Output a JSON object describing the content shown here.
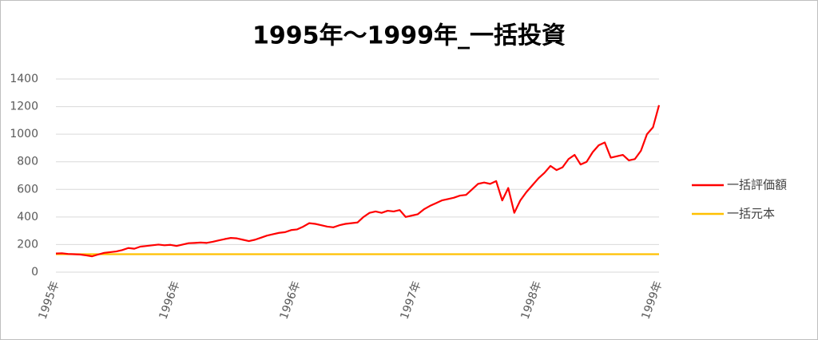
{
  "chart_data": {
    "type": "line",
    "title": "1995年～1999年_一括投資",
    "categories": [
      "1995年",
      null,
      null,
      null,
      null,
      null,
      null,
      null,
      null,
      null,
      null,
      null,
      null,
      null,
      null,
      null,
      null,
      null,
      null,
      null,
      "1996年",
      null,
      null,
      null,
      null,
      null,
      null,
      null,
      null,
      null,
      null,
      null,
      null,
      null,
      null,
      null,
      null,
      null,
      null,
      null,
      "1996年",
      null,
      null,
      null,
      null,
      null,
      null,
      null,
      null,
      null,
      null,
      null,
      null,
      null,
      null,
      null,
      null,
      null,
      null,
      null,
      "1997年",
      null,
      null,
      null,
      null,
      null,
      null,
      null,
      null,
      null,
      null,
      null,
      null,
      null,
      null,
      null,
      null,
      null,
      null,
      null,
      "1998年",
      null,
      null,
      null,
      null,
      null,
      null,
      null,
      null,
      null,
      null,
      null,
      null,
      null,
      null,
      null,
      null,
      null,
      null,
      null,
      "1999年"
    ],
    "series": [
      {
        "name": "一括評価額",
        "color": "#ff0000",
        "values": [
          135,
          137,
          132,
          130,
          128,
          122,
          115,
          128,
          140,
          145,
          150,
          160,
          175,
          170,
          185,
          190,
          195,
          200,
          195,
          198,
          190,
          200,
          210,
          212,
          215,
          212,
          220,
          230,
          240,
          248,
          245,
          235,
          225,
          235,
          250,
          265,
          275,
          285,
          290,
          305,
          310,
          330,
          355,
          350,
          340,
          330,
          325,
          340,
          350,
          355,
          360,
          400,
          430,
          440,
          430,
          445,
          440,
          450,
          400,
          410,
          420,
          455,
          480,
          500,
          520,
          530,
          540,
          555,
          560,
          600,
          640,
          650,
          640,
          660,
          520,
          610,
          430,
          520,
          580,
          630,
          680,
          720,
          770,
          740,
          760,
          820,
          850,
          780,
          800,
          870,
          920,
          940,
          830,
          840,
          850,
          810,
          820,
          880,
          1000,
          1050,
          1210
        ]
      },
      {
        "name": "一括元本",
        "color": "#ffc000",
        "values": [
          130,
          130,
          130,
          130,
          130,
          130,
          130,
          130,
          130,
          130,
          130,
          130,
          130,
          130,
          130,
          130,
          130,
          130,
          130,
          130,
          130,
          130,
          130,
          130,
          130,
          130,
          130,
          130,
          130,
          130,
          130,
          130,
          130,
          130,
          130,
          130,
          130,
          130,
          130,
          130,
          130,
          130,
          130,
          130,
          130,
          130,
          130,
          130,
          130,
          130,
          130,
          130,
          130,
          130,
          130,
          130,
          130,
          130,
          130,
          130,
          130,
          130,
          130,
          130,
          130,
          130,
          130,
          130,
          130,
          130,
          130,
          130,
          130,
          130,
          130,
          130,
          130,
          130,
          130,
          130,
          130,
          130,
          130,
          130,
          130,
          130,
          130,
          130,
          130,
          130,
          130,
          130,
          130,
          130,
          130,
          130,
          130,
          130,
          130,
          130,
          130
        ]
      }
    ],
    "ylim": [
      0,
      1400
    ],
    "yticks": [
      0,
      200,
      400,
      600,
      800,
      1000,
      1200,
      1400
    ],
    "grid": true,
    "legend": "right"
  }
}
